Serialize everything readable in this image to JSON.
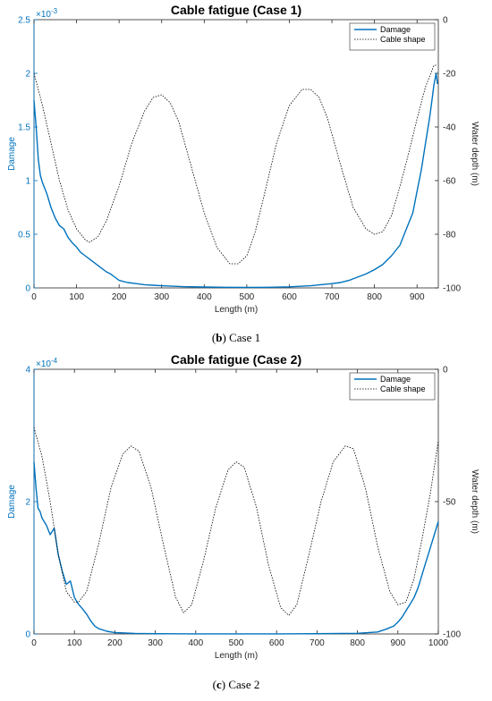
{
  "colors": {
    "damage": "#0072bd",
    "cable": "#000000",
    "axis": "#262626"
  },
  "chart_data": [
    {
      "type": "line",
      "title": "Cable fatigue (Case 1)",
      "caption": {
        "letter": "b",
        "text": " Case 1"
      },
      "xlabel": "Length (m)",
      "ylabel_left": "Damage",
      "ylabel_right": "Water depth (m)",
      "left_exponent": "×10",
      "left_exponent_power": "-3",
      "xlim": [
        0,
        950
      ],
      "ylim_left": [
        0,
        2.5
      ],
      "ylim_right": [
        -100,
        0
      ],
      "x_ticks": [
        0,
        100,
        200,
        300,
        400,
        500,
        600,
        700,
        800,
        900
      ],
      "left_ticks": [
        0,
        0.5,
        1,
        1.5,
        2,
        2.5
      ],
      "right_ticks": [
        -100,
        -80,
        -60,
        -40,
        -20,
        0
      ],
      "legend": {
        "position": "top-right",
        "entries": [
          "Damage",
          "Cable shape"
        ]
      },
      "series": [
        {
          "name": "Damage",
          "axis": "left",
          "style": "solid",
          "x": [
            0,
            5,
            10,
            15,
            20,
            30,
            40,
            50,
            60,
            70,
            80,
            90,
            100,
            110,
            120,
            130,
            140,
            150,
            160,
            170,
            180,
            190,
            200,
            220,
            240,
            260,
            280,
            300,
            350,
            400,
            450,
            500,
            550,
            600,
            650,
            700,
            720,
            740,
            760,
            780,
            800,
            820,
            840,
            860,
            870,
            880,
            890,
            900,
            910,
            920,
            930,
            935,
            940,
            945,
            948
          ],
          "y": [
            1.75,
            1.5,
            1.2,
            1.05,
            0.98,
            0.88,
            0.75,
            0.65,
            0.58,
            0.55,
            0.47,
            0.42,
            0.38,
            0.33,
            0.3,
            0.27,
            0.24,
            0.21,
            0.18,
            0.15,
            0.13,
            0.1,
            0.07,
            0.05,
            0.04,
            0.03,
            0.025,
            0.02,
            0.012,
            0.008,
            0.006,
            0.005,
            0.006,
            0.01,
            0.02,
            0.04,
            0.05,
            0.07,
            0.1,
            0.13,
            0.17,
            0.22,
            0.3,
            0.4,
            0.5,
            0.6,
            0.7,
            0.9,
            1.1,
            1.35,
            1.6,
            1.75,
            1.9,
            2.0,
            1.9
          ]
        },
        {
          "name": "Cable shape",
          "axis": "right",
          "style": "dotted",
          "x": [
            0,
            20,
            40,
            60,
            80,
            100,
            120,
            130,
            150,
            170,
            200,
            230,
            260,
            280,
            300,
            320,
            340,
            370,
            400,
            430,
            460,
            480,
            500,
            520,
            540,
            570,
            600,
            630,
            650,
            670,
            690,
            720,
            750,
            780,
            800,
            820,
            840,
            860,
            880,
            900,
            920,
            940,
            948
          ],
          "y": [
            -20,
            -32,
            -46,
            -60,
            -71,
            -78,
            -82,
            -83,
            -81,
            -75,
            -62,
            -46,
            -34,
            -29,
            -28,
            -31,
            -38,
            -55,
            -72,
            -85,
            -91,
            -91,
            -88,
            -79,
            -66,
            -46,
            -32,
            -26,
            -26,
            -29,
            -37,
            -54,
            -70,
            -78,
            -80,
            -79,
            -73,
            -62,
            -50,
            -37,
            -25,
            -17,
            -17
          ]
        }
      ]
    },
    {
      "type": "line",
      "title": "Cable fatigue (Case 2)",
      "caption": {
        "letter": "c",
        "text": " Case 2"
      },
      "xlabel": "Length (m)",
      "ylabel_left": "Damage",
      "ylabel_right": "Water depth (m)",
      "left_exponent": "×10",
      "left_exponent_power": "-4",
      "xlim": [
        0,
        1000
      ],
      "ylim_left": [
        0,
        4
      ],
      "ylim_right": [
        -100,
        0
      ],
      "x_ticks": [
        0,
        100,
        200,
        300,
        400,
        500,
        600,
        700,
        800,
        900,
        1000
      ],
      "left_ticks": [
        0,
        2,
        4
      ],
      "right_ticks": [
        -100,
        -50,
        0
      ],
      "legend": {
        "position": "top-right",
        "entries": [
          "Damage",
          "Cable shape"
        ]
      },
      "series": [
        {
          "name": "Damage",
          "axis": "left",
          "style": "solid",
          "x": [
            0,
            5,
            10,
            15,
            20,
            30,
            40,
            50,
            60,
            70,
            80,
            90,
            100,
            110,
            120,
            130,
            140,
            150,
            160,
            180,
            200,
            250,
            300,
            400,
            500,
            600,
            700,
            800,
            850,
            870,
            890,
            900,
            910,
            920,
            930,
            940,
            950,
            960,
            970,
            980,
            990,
            1000
          ],
          "y": [
            2.6,
            2.2,
            1.9,
            1.85,
            1.75,
            1.65,
            1.5,
            1.6,
            1.2,
            0.95,
            0.75,
            0.8,
            0.55,
            0.45,
            0.38,
            0.3,
            0.2,
            0.12,
            0.08,
            0.04,
            0.02,
            0.008,
            0.004,
            0.002,
            0.002,
            0.002,
            0.004,
            0.01,
            0.03,
            0.07,
            0.12,
            0.18,
            0.25,
            0.35,
            0.45,
            0.55,
            0.7,
            0.9,
            1.1,
            1.3,
            1.5,
            1.7
          ]
        },
        {
          "name": "Cable shape",
          "axis": "right",
          "style": "dotted",
          "x": [
            0,
            20,
            40,
            60,
            80,
            100,
            110,
            130,
            160,
            190,
            220,
            240,
            260,
            290,
            320,
            350,
            370,
            390,
            420,
            450,
            480,
            500,
            520,
            550,
            580,
            610,
            630,
            650,
            680,
            710,
            740,
            770,
            790,
            820,
            850,
            880,
            900,
            920,
            940,
            960,
            980,
            1000
          ],
          "y": [
            -22,
            -33,
            -50,
            -70,
            -84,
            -88,
            -88,
            -84,
            -66,
            -45,
            -32,
            -29,
            -31,
            -45,
            -66,
            -86,
            -92,
            -89,
            -72,
            -52,
            -38,
            -35,
            -37,
            -52,
            -74,
            -90,
            -93,
            -89,
            -70,
            -50,
            -35,
            -29,
            -30,
            -45,
            -67,
            -84,
            -89,
            -88,
            -79,
            -64,
            -47,
            -27
          ]
        }
      ]
    }
  ]
}
